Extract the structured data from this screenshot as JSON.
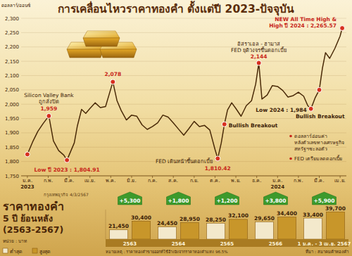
{
  "chart_data": [
    {
      "type": "line",
      "title": "การเคลื่อนไหวราคาทองคำ ตั้งแต่ปี 2023-ปัจจุบัน",
      "y_label": "ดอลลาร์/ออนซ์",
      "source": "กรุงเทพธุรกิจ 4/3/2567",
      "x": [
        0,
        0.25,
        0.5,
        0.75,
        1.03,
        1.25,
        1.5,
        1.75,
        1.9,
        2.25,
        2.4,
        2.6,
        2.8,
        3,
        3.25,
        3.5,
        3.75,
        4.1,
        4.3,
        4.5,
        4.75,
        5,
        5.25,
        5.5,
        5.75,
        6,
        6.25,
        6.5,
        6.75,
        7,
        7.25,
        7.5,
        7.75,
        8,
        8.25,
        8.5,
        8.75,
        9,
        9.13,
        9.3,
        9.45,
        9.6,
        9.8,
        10,
        10.25,
        10.5,
        10.75,
        10.95,
        11.1,
        11.25,
        11.5,
        11.75,
        12,
        12.25,
        12.5,
        12.75,
        13,
        13.25,
        13.45,
        13.6,
        13.8,
        14,
        14.15,
        14.3,
        14.5,
        14.75,
        15,
        15.1
      ],
      "values": [
        1825,
        1868,
        1905,
        1932,
        1959,
        1872,
        1838,
        1822,
        1804.91,
        1865,
        1925,
        1982,
        1968,
        1985,
        2005,
        1988,
        1992,
        2078,
        2012,
        1978,
        1945,
        1962,
        1958,
        1928,
        1912,
        1922,
        1935,
        1962,
        1955,
        1935,
        1913,
        1892,
        1915,
        1940,
        1922,
        1926,
        1910,
        1842,
        1810.42,
        1865,
        1930,
        1980,
        2005,
        1985,
        1958,
        1995,
        2012,
        2070,
        2144,
        2018,
        2032,
        2065,
        2062,
        2048,
        2025,
        2030,
        2042,
        2028,
        1995,
        1984,
        2022,
        2050,
        2125,
        2180,
        2160,
        2195,
        2238,
        2265.57
      ],
      "color": "#4a2a08",
      "xlim": [
        -0.3,
        15.3
      ],
      "xticks": [
        {
          "value": 0,
          "label": "ม.ค."
        },
        {
          "value": 1,
          "label": "ก.พ."
        },
        {
          "value": 2,
          "label": "มี.ค."
        },
        {
          "value": 3,
          "label": "เม.ย."
        },
        {
          "value": 4,
          "label": "พ.ค."
        },
        {
          "value": 5,
          "label": "มิ.ย."
        },
        {
          "value": 6,
          "label": "ก.ค."
        },
        {
          "value": 7,
          "label": "ส.ค."
        },
        {
          "value": 8,
          "label": "ก.ย."
        },
        {
          "value": 9,
          "label": "ต.ค."
        },
        {
          "value": 10,
          "label": "พ.ย."
        },
        {
          "value": 11,
          "label": "ธ.ค."
        },
        {
          "value": 12,
          "label": "ม.ค."
        },
        {
          "value": 13,
          "label": "ก.พ."
        },
        {
          "value": 14,
          "label": "มี.ค."
        },
        {
          "value": 15,
          "label": "เม.ย."
        }
      ],
      "year_labels": [
        {
          "value": 0,
          "label": "2023"
        },
        {
          "value": 12,
          "label": "2024"
        }
      ],
      "ylim": [
        1750,
        2300
      ],
      "yticks": [
        {
          "value": 1750,
          "label": "1,750"
        },
        {
          "value": 1800,
          "label": "1,800"
        },
        {
          "value": 1850,
          "label": "1,850"
        },
        {
          "value": 1900,
          "label": "1,900"
        },
        {
          "value": 1950,
          "label": "1,950"
        },
        {
          "value": 2000,
          "label": "2,000"
        },
        {
          "value": 2050,
          "label": "2,050"
        },
        {
          "value": 2100,
          "label": "2,100"
        },
        {
          "value": 2150,
          "label": "2,150"
        },
        {
          "value": 2200,
          "label": "2,200"
        },
        {
          "value": 2250,
          "label": "2,250"
        },
        {
          "value": 2300,
          "label": "2,300"
        }
      ],
      "grid": true,
      "annotations": [
        {
          "x": 0,
          "y": 1825
        },
        {
          "x": 1.03,
          "y": 1959,
          "text": [
            "Silicon Valley Bank",
            "ถูกสั่งปิด",
            "1,959"
          ]
        },
        {
          "x": 1.9,
          "y": 1804.91,
          "text": [
            "Low ปี 2023 : 1,804.91"
          ]
        },
        {
          "x": 4.1,
          "y": 2078,
          "text": [
            "2,078"
          ]
        },
        {
          "x": 9.13,
          "y": 1810.42,
          "text": [
            "FED เดินหน้าขึ้นดอกเบี้ย",
            "1,810.42"
          ]
        },
        {
          "x": 9.45,
          "y": 1930,
          "text": [
            "Bullish Breakout"
          ]
        },
        {
          "x": 11.1,
          "y": 2144,
          "text": [
            "อิสราเอล - ฮามาส",
            "FED ยุติวงจรขึ้นดอกเบี้ย",
            "2,144"
          ]
        },
        {
          "x": 13.6,
          "y": 1984,
          "text": [
            "Low 2024 : 1,984"
          ]
        },
        {
          "x": 14.0,
          "y": 2050,
          "text": [
            "Bullish Breakout"
          ]
        },
        {
          "x": 15.1,
          "y": 2265.57,
          "text": [
            "NEW All Time High &",
            "High ปี 2024 : 2,265.57"
          ]
        }
      ],
      "notes": [
        [
          "ดอลลาร์อ่อนค่า",
          "หลังตัวเลขทางเศรษฐกิจ",
          "สหรัฐฯชะลอตัว"
        ],
        [
          "FED เตรียมลดดอกเบี้ย"
        ]
      ]
    },
    {
      "type": "bar",
      "title": "ราคาทองคำ",
      "subtitle": [
        "5 ปี ย้อนหลัง",
        "(2563-2567)"
      ],
      "unit_label": "หน่วย : บาท",
      "categories": [
        "2563",
        "2564",
        "2565",
        "2566",
        "1 ม.ค. - 3 เม.ย. 2567"
      ],
      "series": [
        {
          "name": "ต่ำสุด",
          "color": "#f3e9cc",
          "values": [
            21450,
            24450,
            28250,
            29650,
            33400
          ],
          "value_labels": [
            "21,450",
            "24,450",
            "28,250",
            "29,650",
            "33,400"
          ]
        },
        {
          "name": "สูงสุด",
          "color": "#c8962a",
          "values": [
            30400,
            28950,
            32100,
            34400,
            39700
          ],
          "value_labels": [
            "30,400",
            "28,950",
            "32,100",
            "34,400",
            "39,700"
          ]
        }
      ],
      "changes": {
        "values": [
          5300,
          1800,
          1200,
          3800,
          5900
        ],
        "value_labels": [
          "+5,300",
          "+1,800",
          "+1,200",
          "+3,800",
          "+5,900"
        ],
        "color": "#3d9a2c"
      },
      "ylim": [
        12000,
        42000
      ],
      "yticks": [],
      "tick_labels": "x",
      "data_labels": true,
      "legend": "bottom-left",
      "note": "หมายเหตุ : ราคาทองคำขายออกที่ใช้อ้างอิงจากราคาทองคำแท่ง 96.5%",
      "source": "ที่มา : สมาคมค้าทองคำ"
    }
  ]
}
